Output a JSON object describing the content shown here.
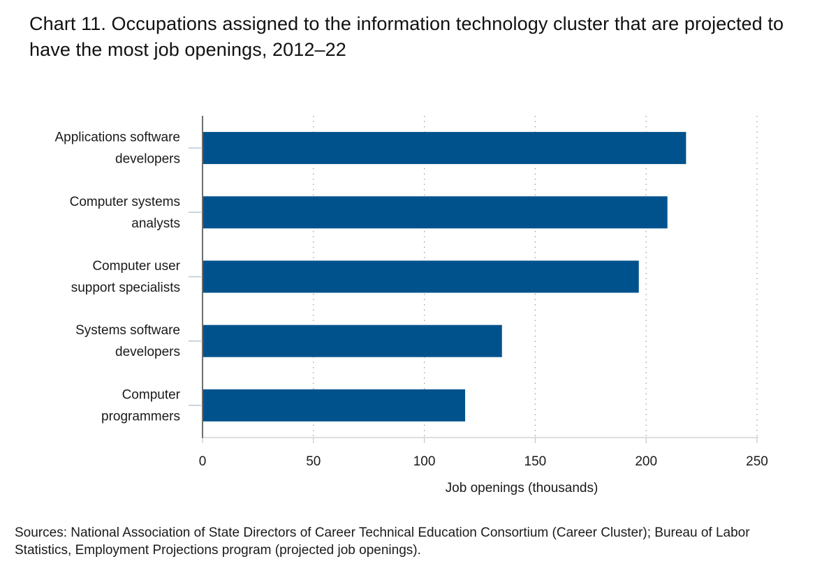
{
  "title": "Chart 11. Occupations assigned to the information technology cluster that are projected to have the most job openings, 2012–22",
  "source": "Sources: National Association of State Directors of Career Technical Education Consortium (Career Cluster); Bureau of Labor Statistics, Employment Projections program (projected job openings).",
  "colors": {
    "bar": "#00528c",
    "grid": "#9a9a9a",
    "axis": "#6e6e6e"
  },
  "chart_data": {
    "type": "bar",
    "orientation": "horizontal",
    "title": "Chart 11. Occupations assigned to the information technology cluster that are projected to have the most job openings, 2012–22",
    "xlabel": "Job openings (thousands)",
    "ylabel": "",
    "xlim": [
      0,
      250
    ],
    "xticks": [
      0,
      50,
      100,
      150,
      200,
      250
    ],
    "grid": "vertical dotted",
    "legend": "none",
    "categories": [
      [
        "Applications software",
        "developers"
      ],
      [
        "Computer systems",
        "analysts"
      ],
      [
        "Computer user",
        "support specialists"
      ],
      [
        "Systems software",
        "developers"
      ],
      [
        "Computer",
        "programmers"
      ]
    ],
    "values": [
      218,
      209.6,
      196.7,
      135,
      118.4
    ]
  }
}
